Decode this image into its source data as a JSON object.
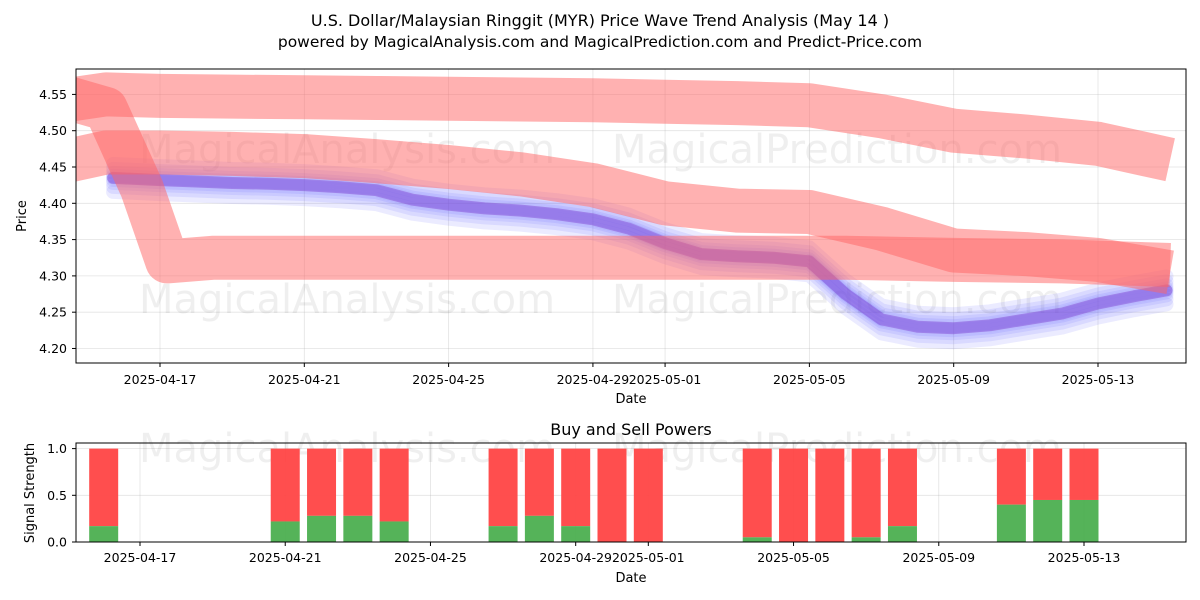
{
  "chart_data": [
    {
      "type": "line",
      "title": "U.S. Dollar/Malaysian Ringgit (MYR) Price Wave Trend Analysis (May 14 )",
      "subtitle": "powered by MagicalAnalysis.com and MagicalPrediction.com and Predict-Price.com",
      "xlabel": "Date",
      "ylabel": "Price",
      "ylim": [
        4.18,
        4.585
      ],
      "yticks": [
        4.2,
        4.25,
        4.3,
        4.35,
        4.4,
        4.45,
        4.5,
        4.55
      ],
      "xticks": [
        {
          "day": 1,
          "label": "2025-04-17"
        },
        {
          "day": 5,
          "label": "2025-04-21"
        },
        {
          "day": 9,
          "label": "2025-04-25"
        },
        {
          "day": 13,
          "label": "2025-04-29"
        },
        {
          "day": 15,
          "label": "2025-05-01"
        },
        {
          "day": 19,
          "label": "2025-05-05"
        },
        {
          "day": 23,
          "label": "2025-05-09"
        },
        {
          "day": 27,
          "label": "2025-05-13"
        }
      ],
      "watermarks": [
        "MagicalAnalysis.com",
        "MagicalPrediction.com"
      ],
      "series": [
        {
          "name": "actual-wave",
          "color": "#6464ff",
          "x": [
            -0.3,
            1,
            2,
            3,
            4,
            5,
            6,
            7,
            8,
            9,
            10,
            11,
            12,
            13,
            14,
            15,
            16,
            17,
            18,
            19,
            20,
            21,
            22,
            23,
            24,
            25,
            26,
            27,
            28,
            28.9
          ],
          "y": [
            4.435,
            4.432,
            4.43,
            4.428,
            4.427,
            4.425,
            4.422,
            4.418,
            4.405,
            4.398,
            4.393,
            4.39,
            4.385,
            4.378,
            4.365,
            4.345,
            4.33,
            4.327,
            4.325,
            4.32,
            4.275,
            4.24,
            4.23,
            4.228,
            4.232,
            4.24,
            4.248,
            4.262,
            4.272,
            4.28
          ]
        },
        {
          "name": "forecast-upper",
          "color": "#ff6464",
          "x": [
            -1.9,
            -0.5,
            1,
            3,
            5,
            7,
            9,
            11,
            13,
            15,
            17,
            19,
            21,
            23,
            25,
            27,
            29
          ],
          "y": [
            4.54,
            4.55,
            4.548,
            4.547,
            4.546,
            4.545,
            4.544,
            4.543,
            4.542,
            4.54,
            4.538,
            4.535,
            4.52,
            4.5,
            4.492,
            4.482,
            4.46
          ]
        },
        {
          "name": "forecast-middle",
          "color": "#ff6464",
          "x": [
            -1.9,
            -0.5,
            1,
            3,
            5,
            7,
            9,
            11,
            13,
            15,
            17,
            19,
            21,
            23,
            25,
            27,
            29
          ],
          "y": [
            4.455,
            4.47,
            4.47,
            4.468,
            4.465,
            4.458,
            4.45,
            4.44,
            4.425,
            4.4,
            4.39,
            4.388,
            4.365,
            4.335,
            4.33,
            4.322,
            4.305
          ]
        },
        {
          "name": "forecast-lower",
          "color": "#ff6464",
          "x": [
            -1.9,
            -0.5,
            0.5,
            1.2,
            2.5,
            5,
            9,
            13,
            17,
            20,
            23,
            26,
            29
          ],
          "y": [
            4.55,
            4.53,
            4.42,
            4.32,
            4.325,
            4.325,
            4.325,
            4.325,
            4.325,
            4.325,
            4.322,
            4.32,
            4.315
          ]
        }
      ]
    },
    {
      "type": "bar",
      "title": "Buy and Sell Powers",
      "xlabel": "Date",
      "ylabel": "Signal Strength",
      "ylim": [
        0,
        1.06
      ],
      "yticks": [
        0.0,
        0.5,
        1.0
      ],
      "xticks": [
        {
          "day": 1,
          "label": "2025-04-17"
        },
        {
          "day": 5,
          "label": "2025-04-21"
        },
        {
          "day": 9,
          "label": "2025-04-25"
        },
        {
          "day": 13,
          "label": "2025-04-29"
        },
        {
          "day": 15,
          "label": "2025-05-01"
        },
        {
          "day": 19,
          "label": "2025-05-05"
        },
        {
          "day": 23,
          "label": "2025-05-09"
        },
        {
          "day": 27,
          "label": "2025-05-13"
        }
      ],
      "watermarks": [
        "MagicalAnalysis.com",
        "MagicalPrediction.com"
      ],
      "buy_color": "#4caf50",
      "sell_color": "#ff4444",
      "days": [
        0,
        5,
        6,
        7,
        8,
        11,
        12,
        13,
        14,
        15,
        18,
        19,
        20,
        21,
        22,
        25,
        26,
        27
      ],
      "buy": [
        0.17,
        0.22,
        0.28,
        0.28,
        0.22,
        0.17,
        0.28,
        0.17,
        0.0,
        0.0,
        0.05,
        0.0,
        0.0,
        0.05,
        0.17,
        0.4,
        0.45,
        0.45
      ],
      "sell": [
        0.83,
        0.78,
        0.72,
        0.72,
        0.78,
        0.83,
        0.72,
        0.83,
        1.0,
        1.0,
        0.95,
        1.0,
        1.0,
        0.95,
        0.83,
        0.6,
        0.55,
        0.55
      ]
    }
  ]
}
